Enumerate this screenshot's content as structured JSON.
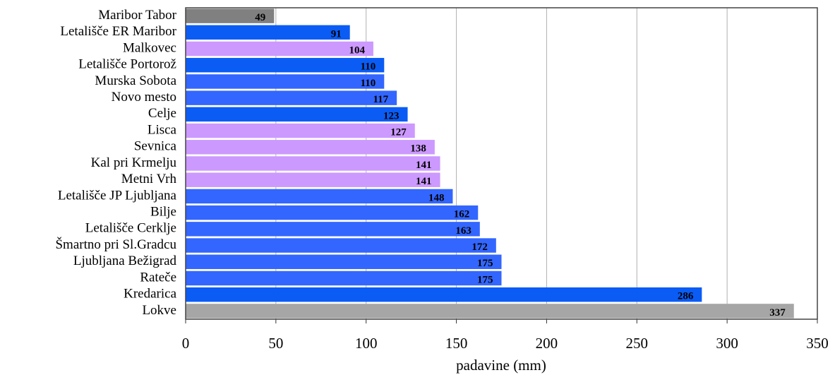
{
  "chart_data": {
    "type": "bar",
    "orientation": "horizontal",
    "xlabel": "padavine (mm)",
    "categories": [
      "Maribor Tabor",
      "Letališče ER Maribor",
      "Malkovec",
      "Letališče Portorož",
      "Murska Sobota",
      "Novo mesto",
      "Celje",
      "Lisca",
      "Sevnica",
      "Kal pri Krmelju",
      "Metni Vrh",
      "Letališče JP Ljubljana",
      "Bilje",
      "Letališče Cerklje",
      "Šmartno pri Sl.Gradcu",
      "Ljubljana Bežigrad",
      "Rateče",
      "Kredarica",
      "Lokve"
    ],
    "values": [
      49,
      91,
      104,
      110,
      110,
      117,
      123,
      127,
      138,
      141,
      141,
      148,
      162,
      163,
      172,
      175,
      175,
      286,
      337
    ],
    "colors": [
      "#808080",
      "#0a5cf5",
      "#cc99ff",
      "#0a5cf5",
      "#3366ff",
      "#3366ff",
      "#0a5cf5",
      "#cc99ff",
      "#cc99ff",
      "#cc99ff",
      "#cc99ff",
      "#3366ff",
      "#3366ff",
      "#3366ff",
      "#3366ff",
      "#3366ff",
      "#3366ff",
      "#0a5cf5",
      "#a6a6a6"
    ],
    "xlim": [
      0,
      350
    ],
    "xticks": [
      0,
      50,
      100,
      150,
      200,
      250,
      300,
      350
    ],
    "grid": true
  }
}
